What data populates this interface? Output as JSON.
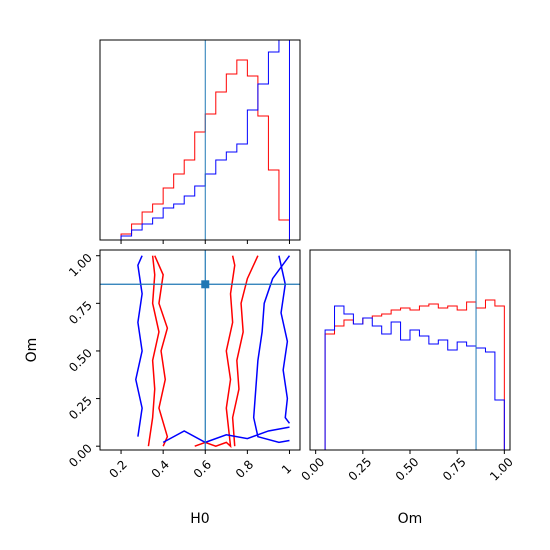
{
  "chart_data": {
    "type": "corner",
    "parameters": [
      "H0",
      "Om"
    ],
    "truths": {
      "H0": 0.6,
      "Om": 0.85
    },
    "colors": {
      "red_series": "#ff0000",
      "blue_series": "#0000ff",
      "truth": "#1f77b4",
      "frame": "#000000"
    },
    "panels": [
      {
        "id": "H0-marginal",
        "type": "histogram",
        "xlim": [
          0.1,
          1.05
        ],
        "xticks": [
          0.2,
          0.4,
          0.6,
          0.8,
          1.0
        ],
        "ylim": [
          0,
          1.0
        ],
        "series": [
          {
            "color": "red",
            "edges": [
              0.15,
              0.2,
              0.25,
              0.3,
              0.35,
              0.4,
              0.45,
              0.5,
              0.55,
              0.6,
              0.65,
              0.7,
              0.75,
              0.8,
              0.85,
              0.9,
              0.95,
              1.0
            ],
            "values": [
              0,
              0.03,
              0.08,
              0.14,
              0.18,
              0.26,
              0.33,
              0.4,
              0.54,
              0.63,
              0.74,
              0.83,
              0.9,
              0.82,
              0.62,
              0.35,
              0.1
            ]
          },
          {
            "color": "blue",
            "edges": [
              0.15,
              0.2,
              0.25,
              0.3,
              0.35,
              0.4,
              0.45,
              0.5,
              0.55,
              0.6,
              0.65,
              0.7,
              0.75,
              0.8,
              0.85,
              0.9,
              0.95,
              1.0
            ],
            "values": [
              0,
              0.02,
              0.05,
              0.08,
              0.11,
              0.16,
              0.18,
              0.22,
              0.27,
              0.33,
              0.4,
              0.44,
              0.48,
              0.65,
              0.78,
              0.94,
              1.0
            ]
          }
        ],
        "truth": 0.6
      },
      {
        "id": "H0-Om-joint",
        "type": "contour",
        "xlabel": "H0",
        "ylabel": "Om",
        "xlim": [
          0.1,
          1.05
        ],
        "ylim": [
          -0.02,
          1.03
        ],
        "xticks": [
          0.2,
          0.4,
          0.6,
          0.8,
          1.0
        ],
        "yticks": [
          0.0,
          0.25,
          0.5,
          0.75,
          1.0
        ],
        "ytick_labels": [
          "0.00",
          "0.25",
          "0.50",
          "0.75",
          "1.00"
        ],
        "contours": [
          {
            "color": "red",
            "points": [
              [
                0.33,
                0.0
              ],
              [
                0.35,
                0.15
              ],
              [
                0.36,
                0.3
              ],
              [
                0.35,
                0.45
              ],
              [
                0.38,
                0.6
              ],
              [
                0.35,
                0.75
              ],
              [
                0.36,
                0.9
              ],
              [
                0.35,
                1.0
              ]
            ]
          },
          {
            "color": "red",
            "points": [
              [
                0.36,
                1.0
              ],
              [
                0.4,
                0.9
              ],
              [
                0.38,
                0.75
              ],
              [
                0.42,
                0.62
              ],
              [
                0.39,
                0.5
              ],
              [
                0.41,
                0.35
              ],
              [
                0.38,
                0.2
              ],
              [
                0.42,
                0.05
              ],
              [
                0.4,
                0.0
              ]
            ]
          },
          {
            "color": "red",
            "points": [
              [
                0.55,
                0.0
              ],
              [
                0.6,
                0.02
              ],
              [
                0.65,
                0.0
              ],
              [
                0.7,
                0.02
              ],
              [
                0.72,
                0.0
              ],
              [
                0.7,
                0.2
              ],
              [
                0.72,
                0.35
              ],
              [
                0.7,
                0.5
              ],
              [
                0.73,
                0.65
              ],
              [
                0.72,
                0.8
              ],
              [
                0.74,
                0.95
              ],
              [
                0.73,
                1.0
              ]
            ]
          },
          {
            "color": "red",
            "points": [
              [
                0.85,
                1.0
              ],
              [
                0.8,
                0.88
              ],
              [
                0.77,
                0.75
              ],
              [
                0.78,
                0.6
              ],
              [
                0.75,
                0.45
              ],
              [
                0.76,
                0.3
              ],
              [
                0.73,
                0.15
              ],
              [
                0.74,
                0.0
              ]
            ]
          },
          {
            "color": "blue",
            "points": [
              [
                0.28,
                0.05
              ],
              [
                0.3,
                0.2
              ],
              [
                0.27,
                0.35
              ],
              [
                0.3,
                0.5
              ],
              [
                0.28,
                0.65
              ],
              [
                0.3,
                0.8
              ],
              [
                0.28,
                0.95
              ],
              [
                0.3,
                1.0
              ]
            ]
          },
          {
            "color": "blue",
            "points": [
              [
                0.4,
                0.02
              ],
              [
                0.5,
                0.08
              ],
              [
                0.6,
                0.02
              ],
              [
                0.7,
                0.06
              ],
              [
                0.8,
                0.04
              ],
              [
                0.9,
                0.08
              ],
              [
                1.0,
                0.1
              ]
            ]
          },
          {
            "color": "blue",
            "points": [
              [
                1.0,
                1.0
              ],
              [
                0.92,
                0.88
              ],
              [
                0.88,
                0.75
              ],
              [
                0.87,
                0.6
              ],
              [
                0.85,
                0.45
              ],
              [
                0.84,
                0.3
              ],
              [
                0.83,
                0.15
              ],
              [
                0.85,
                0.05
              ],
              [
                0.95,
                0.02
              ],
              [
                1.0,
                0.03
              ]
            ]
          },
          {
            "color": "blue",
            "points": [
              [
                0.95,
                1.0
              ],
              [
                0.98,
                0.85
              ],
              [
                0.96,
                0.7
              ],
              [
                0.99,
                0.55
              ],
              [
                0.97,
                0.4
              ],
              [
                0.99,
                0.25
              ],
              [
                0.98,
                0.15
              ],
              [
                1.0,
                0.12
              ]
            ]
          }
        ],
        "truth_point": [
          0.6,
          0.85
        ]
      },
      {
        "id": "Om-marginal",
        "type": "histogram",
        "xlabel": "Om",
        "xlim": [
          -0.03,
          1.03
        ],
        "xticks": [
          0.0,
          0.25,
          0.5,
          0.75,
          1.0
        ],
        "xtick_labels": [
          "0.00",
          "0.25",
          "0.50",
          "0.75",
          "1.00"
        ],
        "ylim": [
          0,
          1.0
        ],
        "series": [
          {
            "color": "red",
            "edges": [
              0.0,
              0.05,
              0.1,
              0.15,
              0.2,
              0.25,
              0.3,
              0.35,
              0.4,
              0.45,
              0.5,
              0.55,
              0.6,
              0.65,
              0.7,
              0.75,
              0.8,
              0.85,
              0.9,
              0.95,
              1.0
            ],
            "values": [
              0.0,
              0.58,
              0.62,
              0.65,
              0.63,
              0.66,
              0.67,
              0.68,
              0.7,
              0.71,
              0.7,
              0.72,
              0.73,
              0.71,
              0.72,
              0.7,
              0.74,
              0.71,
              0.75,
              0.72
            ]
          },
          {
            "color": "blue",
            "edges": [
              0.0,
              0.05,
              0.1,
              0.15,
              0.2,
              0.25,
              0.3,
              0.35,
              0.4,
              0.45,
              0.5,
              0.55,
              0.6,
              0.65,
              0.7,
              0.75,
              0.8,
              0.85,
              0.9,
              0.95,
              1.0
            ],
            "values": [
              0.0,
              0.6,
              0.72,
              0.68,
              0.63,
              0.66,
              0.62,
              0.58,
              0.64,
              0.55,
              0.6,
              0.57,
              0.53,
              0.55,
              0.5,
              0.54,
              0.52,
              0.51,
              0.49,
              0.25
            ]
          }
        ],
        "truth": 0.85
      }
    ]
  }
}
